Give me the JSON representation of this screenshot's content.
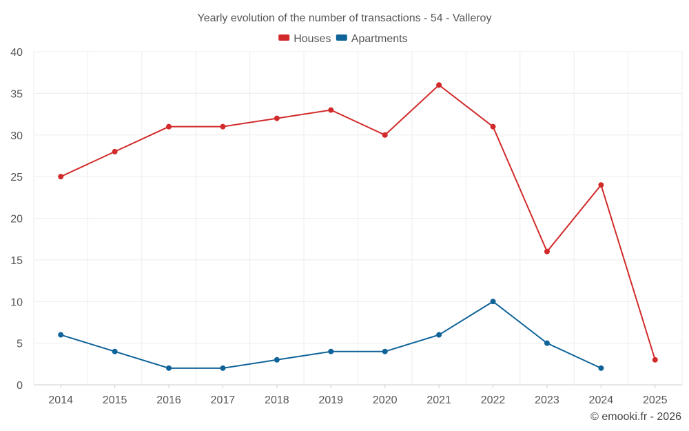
{
  "chart_data": {
    "type": "line",
    "title": "Yearly evolution of the number of transactions - 54 - Valleroy",
    "categories": [
      "2014",
      "2015",
      "2016",
      "2017",
      "2018",
      "2019",
      "2020",
      "2021",
      "2022",
      "2023",
      "2024",
      "2025"
    ],
    "series": [
      {
        "name": "Houses",
        "color": "#d22a2a",
        "values": [
          25,
          28,
          31,
          31,
          32,
          33,
          30,
          36,
          31,
          16,
          24,
          3
        ]
      },
      {
        "name": "Apartments",
        "color": "#0f6399",
        "values": [
          6,
          4,
          2,
          2,
          3,
          4,
          4,
          6,
          10,
          5,
          2,
          null
        ]
      }
    ],
    "ylim": [
      0,
      40
    ],
    "yticks": [
      0,
      5,
      10,
      15,
      20,
      25,
      30,
      35,
      40
    ],
    "grid": true,
    "legend_position": "top-center",
    "xlabel": "",
    "ylabel": ""
  },
  "credit": "© emooki.fr - 2026"
}
